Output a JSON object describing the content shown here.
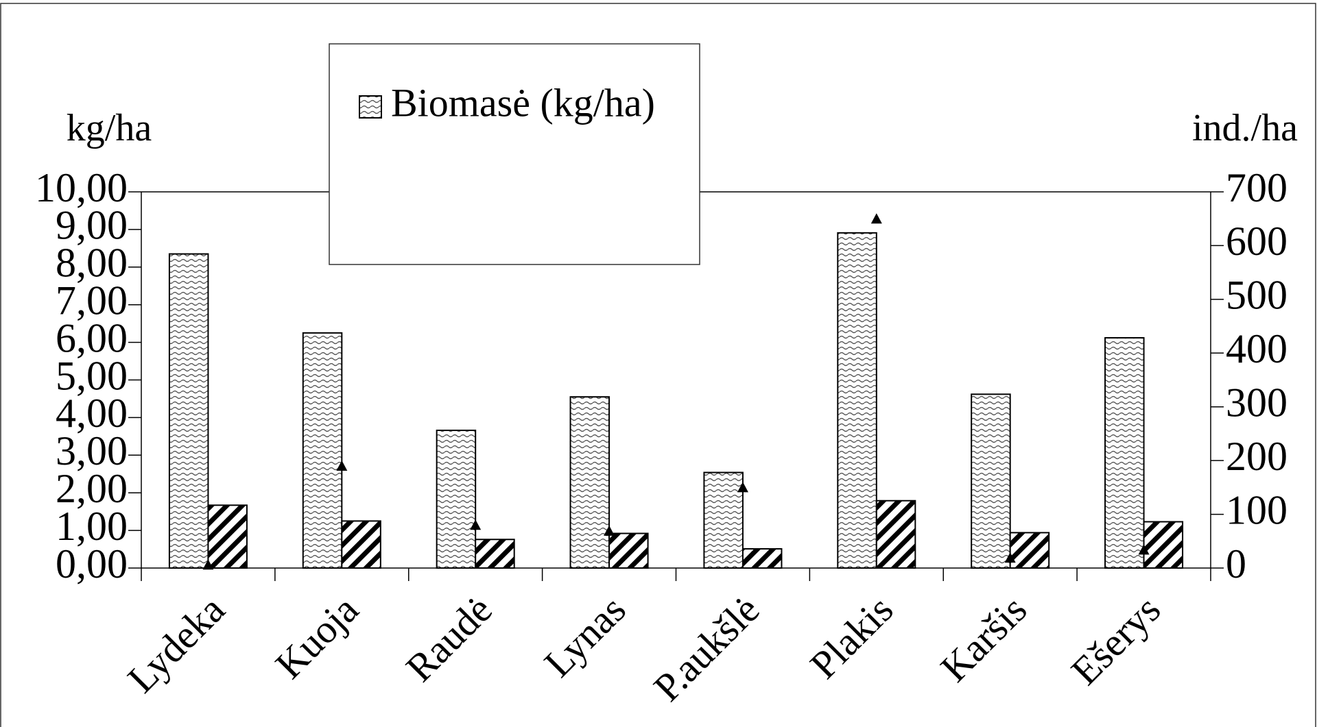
{
  "chart_data": {
    "type": "bar",
    "y_label": "kg/ha",
    "y2_label": "ind./ha",
    "categories": [
      "Lydeka",
      "Kuoja",
      "Raudė",
      "Lynas",
      "P.aukšlė",
      "Plakis",
      "Karšis",
      "Ešerys"
    ],
    "series": [
      {
        "name": "Biomasė (kg/ha)",
        "color": "#000000",
        "pattern": "wave",
        "values": [
          8.35,
          6.25,
          3.66,
          4.55,
          2.54,
          8.91,
          4.62,
          6.12
        ]
      },
      {
        "color": "#000000",
        "pattern": "hatch",
        "values": [
          1.67,
          1.25,
          0.76,
          0.92,
          0.51,
          1.79,
          0.94,
          1.23
        ]
      },
      {
        "color": "#000000",
        "marker": "triangle",
        "axis": "y2",
        "values": [
          6,
          190,
          80,
          69,
          150,
          650,
          19,
          34
        ]
      }
    ],
    "ylim": [
      0,
      10
    ],
    "yticks": [
      {
        "value": 0,
        "label": "0,00"
      },
      {
        "value": 1,
        "label": "1,00"
      },
      {
        "value": 2,
        "label": "2,00"
      },
      {
        "value": 3,
        "label": "3,00"
      },
      {
        "value": 4,
        "label": "4,00"
      },
      {
        "value": 5,
        "label": "5,00"
      },
      {
        "value": 6,
        "label": "6,00"
      },
      {
        "value": 7,
        "label": "7,00"
      },
      {
        "value": 8,
        "label": "8,00"
      },
      {
        "value": 9,
        "label": "9,00"
      },
      {
        "value": 10,
        "label": "10,00"
      }
    ],
    "y2lim": [
      0,
      700
    ],
    "y2ticks": [
      0,
      100,
      200,
      300,
      400,
      500,
      600,
      700
    ],
    "grid": false,
    "legend": "top"
  }
}
